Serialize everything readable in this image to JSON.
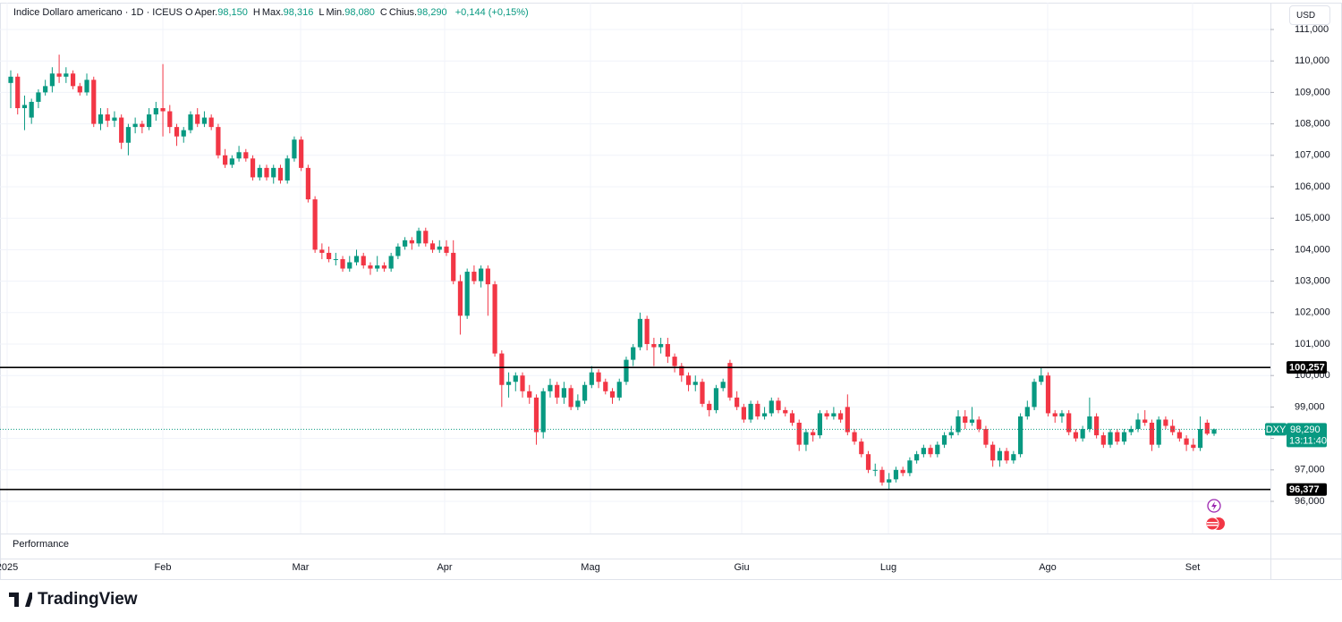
{
  "chart_data": {
    "type": "candlestick",
    "title": "Indice Dollaro americano · 1D · ICEUS",
    "ohlc_legend": [
      {
        "key": "O",
        "name": "Aper.",
        "value": "98,150"
      },
      {
        "key": "H",
        "name": "Max.",
        "value": "98,316"
      },
      {
        "key": "L",
        "name": "Min.",
        "value": "98,080"
      },
      {
        "key": "C",
        "name": "Chius.",
        "value": "98,290"
      }
    ],
    "change": "+0,144 (+0,15%)",
    "currency": "USD",
    "up_color": "#089981",
    "down_color": "#f23645",
    "categories": [
      "2025",
      "Feb",
      "Mar",
      "Apr",
      "Mag",
      "Giu",
      "Lug",
      "Ago",
      "Set"
    ],
    "ylim": [
      95.05,
      111.9
    ],
    "yticks": [
      {
        "value": 96,
        "label": "96,000"
      },
      {
        "value": 97,
        "label": "97,000"
      },
      {
        "value": 98,
        "label": "98,000"
      },
      {
        "value": 99,
        "label": "99,000"
      },
      {
        "value": 100,
        "label": "100,000"
      },
      {
        "value": 101,
        "label": "101,000"
      },
      {
        "value": 102,
        "label": "102,000"
      },
      {
        "value": 103,
        "label": "103,000"
      },
      {
        "value": 104,
        "label": "104,000"
      },
      {
        "value": 105,
        "label": "105,000"
      },
      {
        "value": 106,
        "label": "106,000"
      },
      {
        "value": 107,
        "label": "107,000"
      },
      {
        "value": 108,
        "label": "108,000"
      },
      {
        "value": 109,
        "label": "109,000"
      },
      {
        "value": 110,
        "label": "110,000"
      },
      {
        "value": 111,
        "label": "111,000"
      }
    ],
    "grid": true,
    "levels": [
      {
        "value": 100.257,
        "label": "100,257"
      },
      {
        "value": 96.377,
        "label": "96,377"
      }
    ],
    "last_price": {
      "symbol": "DXY",
      "value": 98.29,
      "label": "98,290",
      "countdown": "13:11:40"
    },
    "pane_label": "Performance",
    "brand": "TradingView",
    "candles": [
      [
        109.3,
        109.7,
        108.5,
        109.5
      ],
      [
        109.5,
        109.6,
        108.3,
        108.5
      ],
      [
        108.5,
        108.9,
        107.8,
        108.6
      ],
      [
        108.2,
        108.8,
        108.0,
        108.7
      ],
      [
        108.7,
        109.1,
        108.5,
        109.0
      ],
      [
        109.0,
        109.4,
        108.9,
        109.2
      ],
      [
        109.2,
        109.8,
        109.0,
        109.6
      ],
      [
        109.6,
        110.2,
        109.3,
        109.5
      ],
      [
        109.5,
        109.8,
        109.3,
        109.6
      ],
      [
        109.6,
        109.7,
        109.1,
        109.2
      ],
      [
        109.2,
        109.3,
        108.9,
        109.0
      ],
      [
        109.0,
        109.6,
        108.9,
        109.4
      ],
      [
        109.4,
        109.5,
        107.9,
        108.0
      ],
      [
        108.0,
        108.5,
        107.8,
        108.3
      ],
      [
        108.3,
        108.5,
        107.9,
        108.1
      ],
      [
        108.1,
        108.4,
        107.9,
        108.2
      ],
      [
        108.2,
        108.3,
        107.2,
        107.4
      ],
      [
        107.4,
        108.0,
        107.0,
        107.9
      ],
      [
        107.9,
        108.2,
        107.7,
        108.0
      ],
      [
        108.0,
        108.1,
        107.7,
        107.9
      ],
      [
        107.9,
        108.5,
        107.8,
        108.3
      ],
      [
        108.3,
        108.7,
        108.1,
        108.5
      ],
      [
        108.5,
        109.9,
        107.6,
        108.4
      ],
      [
        108.4,
        108.6,
        107.7,
        107.9
      ],
      [
        107.9,
        108.0,
        107.3,
        107.6
      ],
      [
        107.6,
        107.9,
        107.4,
        107.8
      ],
      [
        107.8,
        108.4,
        107.7,
        108.3
      ],
      [
        108.3,
        108.5,
        107.9,
        108.0
      ],
      [
        108.0,
        108.4,
        107.9,
        108.2
      ],
      [
        108.2,
        108.3,
        107.8,
        107.9
      ],
      [
        107.9,
        108.0,
        106.9,
        107.0
      ],
      [
        107.0,
        107.2,
        106.6,
        106.7
      ],
      [
        106.7,
        107.0,
        106.6,
        106.9
      ],
      [
        106.9,
        107.3,
        106.8,
        107.1
      ],
      [
        107.1,
        107.2,
        106.8,
        106.9
      ],
      [
        106.9,
        107.0,
        106.2,
        106.3
      ],
      [
        106.3,
        106.7,
        106.2,
        106.6
      ],
      [
        106.6,
        106.7,
        106.2,
        106.3
      ],
      [
        106.3,
        106.7,
        106.1,
        106.6
      ],
      [
        106.6,
        106.7,
        106.1,
        106.2
      ],
      [
        106.2,
        107.0,
        106.1,
        106.9
      ],
      [
        106.9,
        107.6,
        106.8,
        107.5
      ],
      [
        107.5,
        107.6,
        106.5,
        106.6
      ],
      [
        106.6,
        106.7,
        105.5,
        105.6
      ],
      [
        105.6,
        105.7,
        103.9,
        104.0
      ],
      [
        104.0,
        104.2,
        103.7,
        103.9
      ],
      [
        103.9,
        104.1,
        103.6,
        103.7
      ],
      [
        103.7,
        103.9,
        103.5,
        103.7
      ],
      [
        103.7,
        103.8,
        103.3,
        103.4
      ],
      [
        103.4,
        103.8,
        103.3,
        103.6
      ],
      [
        103.6,
        104.0,
        103.5,
        103.8
      ],
      [
        103.8,
        103.9,
        103.4,
        103.5
      ],
      [
        103.5,
        103.6,
        103.2,
        103.4
      ],
      [
        103.4,
        103.8,
        103.3,
        103.5
      ],
      [
        103.5,
        103.6,
        103.3,
        103.4
      ],
      [
        103.4,
        103.9,
        103.3,
        103.8
      ],
      [
        103.8,
        104.2,
        103.7,
        104.1
      ],
      [
        104.1,
        104.4,
        104.0,
        104.3
      ],
      [
        104.3,
        104.4,
        104.0,
        104.2
      ],
      [
        104.2,
        104.7,
        104.1,
        104.6
      ],
      [
        104.6,
        104.7,
        104.1,
        104.2
      ],
      [
        104.2,
        104.3,
        103.9,
        104.0
      ],
      [
        104.0,
        104.3,
        103.9,
        104.1
      ],
      [
        104.1,
        104.3,
        103.8,
        103.9
      ],
      [
        103.9,
        104.3,
        102.9,
        103.0
      ],
      [
        103.0,
        103.2,
        101.3,
        101.9
      ],
      [
        101.9,
        103.4,
        101.8,
        103.3
      ],
      [
        103.3,
        103.5,
        102.9,
        103.0
      ],
      [
        103.0,
        103.5,
        102.8,
        103.4
      ],
      [
        103.4,
        103.5,
        101.9,
        102.9
      ],
      [
        102.9,
        103.0,
        100.6,
        100.7
      ],
      [
        100.7,
        100.8,
        99.0,
        99.7
      ],
      [
        99.7,
        100.1,
        99.3,
        99.8
      ],
      [
        99.8,
        100.1,
        99.5,
        100.0
      ],
      [
        100.0,
        100.1,
        99.3,
        99.5
      ],
      [
        99.5,
        99.7,
        99.1,
        99.3
      ],
      [
        99.3,
        99.4,
        97.8,
        98.2
      ],
      [
        98.2,
        99.6,
        98.0,
        99.5
      ],
      [
        99.5,
        99.9,
        99.3,
        99.7
      ],
      [
        99.7,
        99.8,
        99.1,
        99.3
      ],
      [
        99.3,
        99.8,
        99.1,
        99.6
      ],
      [
        99.6,
        99.7,
        98.9,
        99.0
      ],
      [
        99.0,
        99.4,
        98.9,
        99.2
      ],
      [
        99.2,
        99.8,
        99.1,
        99.7
      ],
      [
        99.7,
        100.3,
        99.6,
        100.1
      ],
      [
        100.1,
        100.2,
        99.6,
        99.8
      ],
      [
        99.8,
        99.9,
        99.4,
        99.5
      ],
      [
        99.5,
        99.6,
        99.1,
        99.3
      ],
      [
        99.3,
        99.9,
        99.2,
        99.8
      ],
      [
        99.8,
        100.6,
        99.7,
        100.5
      ],
      [
        100.5,
        101.0,
        100.3,
        100.9
      ],
      [
        100.9,
        102.0,
        100.8,
        101.8
      ],
      [
        101.8,
        101.9,
        100.8,
        101.0
      ],
      [
        101.0,
        101.2,
        100.3,
        100.9
      ],
      [
        100.9,
        101.2,
        100.7,
        101.0
      ],
      [
        101.0,
        101.2,
        100.4,
        100.6
      ],
      [
        100.6,
        100.7,
        100.1,
        100.3
      ],
      [
        100.3,
        100.4,
        99.8,
        100.0
      ],
      [
        100.0,
        100.1,
        99.5,
        99.7
      ],
      [
        99.7,
        100.0,
        99.5,
        99.8
      ],
      [
        99.8,
        99.9,
        99.0,
        99.1
      ],
      [
        99.1,
        99.2,
        98.7,
        98.9
      ],
      [
        98.9,
        99.7,
        98.8,
        99.6
      ],
      [
        99.6,
        99.9,
        99.5,
        99.8
      ],
      [
        100.4,
        100.5,
        99.2,
        99.3
      ],
      [
        99.3,
        99.5,
        98.9,
        99.0
      ],
      [
        99.0,
        99.1,
        98.5,
        98.6
      ],
      [
        98.6,
        99.2,
        98.5,
        99.1
      ],
      [
        99.1,
        99.2,
        98.6,
        98.7
      ],
      [
        98.7,
        99.0,
        98.6,
        98.8
      ],
      [
        98.8,
        99.3,
        98.7,
        99.2
      ],
      [
        99.2,
        99.3,
        98.8,
        98.9
      ],
      [
        98.9,
        99.0,
        98.7,
        98.8
      ],
      [
        98.8,
        98.9,
        98.4,
        98.5
      ],
      [
        98.5,
        98.6,
        97.6,
        97.8
      ],
      [
        97.8,
        98.3,
        97.6,
        98.2
      ],
      [
        98.2,
        98.3,
        97.9,
        98.1
      ],
      [
        98.1,
        98.9,
        98.0,
        98.8
      ],
      [
        98.8,
        98.9,
        98.6,
        98.7
      ],
      [
        98.7,
        99.0,
        98.6,
        98.8
      ],
      [
        98.8,
        98.9,
        98.5,
        98.6
      ],
      [
        99.0,
        99.4,
        98.1,
        98.2
      ],
      [
        98.2,
        98.3,
        97.8,
        97.9
      ],
      [
        97.9,
        98.0,
        97.4,
        97.5
      ],
      [
        97.5,
        97.6,
        96.9,
        97.0
      ],
      [
        97.0,
        97.2,
        96.8,
        97.0
      ],
      [
        97.0,
        97.1,
        96.5,
        96.6
      ],
      [
        96.6,
        96.9,
        96.38,
        96.7
      ],
      [
        96.7,
        97.1,
        96.6,
        97.0
      ],
      [
        97.0,
        97.1,
        96.8,
        96.9
      ],
      [
        96.9,
        97.4,
        96.8,
        97.3
      ],
      [
        97.3,
        97.6,
        97.2,
        97.5
      ],
      [
        97.5,
        97.8,
        97.4,
        97.7
      ],
      [
        97.7,
        97.8,
        97.4,
        97.5
      ],
      [
        97.5,
        97.9,
        97.4,
        97.8
      ],
      [
        97.8,
        98.2,
        97.7,
        98.1
      ],
      [
        98.1,
        98.4,
        98.0,
        98.2
      ],
      [
        98.2,
        98.9,
        98.1,
        98.7
      ],
      [
        98.7,
        98.9,
        98.3,
        98.5
      ],
      [
        98.5,
        99.0,
        98.4,
        98.6
      ],
      [
        98.6,
        98.7,
        98.2,
        98.3
      ],
      [
        98.3,
        98.4,
        97.7,
        97.8
      ],
      [
        97.8,
        97.9,
        97.1,
        97.3
      ],
      [
        97.3,
        97.7,
        97.1,
        97.6
      ],
      [
        97.6,
        97.7,
        97.2,
        97.3
      ],
      [
        97.3,
        97.6,
        97.2,
        97.5
      ],
      [
        97.5,
        98.8,
        97.4,
        98.7
      ],
      [
        98.7,
        99.2,
        98.6,
        99.0
      ],
      [
        99.0,
        99.9,
        98.9,
        99.8
      ],
      [
        99.8,
        100.25,
        99.7,
        100.0
      ],
      [
        100.0,
        100.1,
        98.7,
        98.8
      ],
      [
        98.8,
        98.9,
        98.5,
        98.7
      ],
      [
        98.7,
        98.9,
        98.5,
        98.8
      ],
      [
        98.8,
        98.9,
        98.1,
        98.2
      ],
      [
        98.2,
        98.3,
        97.9,
        98.0
      ],
      [
        98.0,
        98.4,
        97.9,
        98.3
      ],
      [
        98.3,
        99.3,
        98.2,
        98.7
      ],
      [
        98.7,
        98.8,
        98.0,
        98.1
      ],
      [
        98.1,
        98.2,
        97.7,
        97.8
      ],
      [
        97.8,
        98.3,
        97.7,
        98.2
      ],
      [
        98.2,
        98.3,
        97.8,
        97.9
      ],
      [
        97.9,
        98.3,
        97.8,
        98.2
      ],
      [
        98.2,
        98.4,
        98.1,
        98.3
      ],
      [
        98.3,
        98.8,
        98.2,
        98.6
      ],
      [
        98.6,
        98.9,
        98.4,
        98.5
      ],
      [
        98.5,
        98.6,
        97.6,
        97.8
      ],
      [
        97.8,
        98.7,
        97.7,
        98.6
      ],
      [
        98.6,
        98.7,
        98.3,
        98.4
      ],
      [
        98.4,
        98.6,
        98.1,
        98.2
      ],
      [
        98.2,
        98.3,
        97.9,
        98.0
      ],
      [
        98.0,
        98.1,
        97.6,
        97.8
      ],
      [
        97.8,
        98.0,
        97.6,
        97.7
      ],
      [
        97.7,
        98.7,
        97.6,
        98.3
      ],
      [
        98.5,
        98.6,
        98.1,
        98.15
      ],
      [
        98.15,
        98.316,
        98.08,
        98.29
      ]
    ]
  }
}
